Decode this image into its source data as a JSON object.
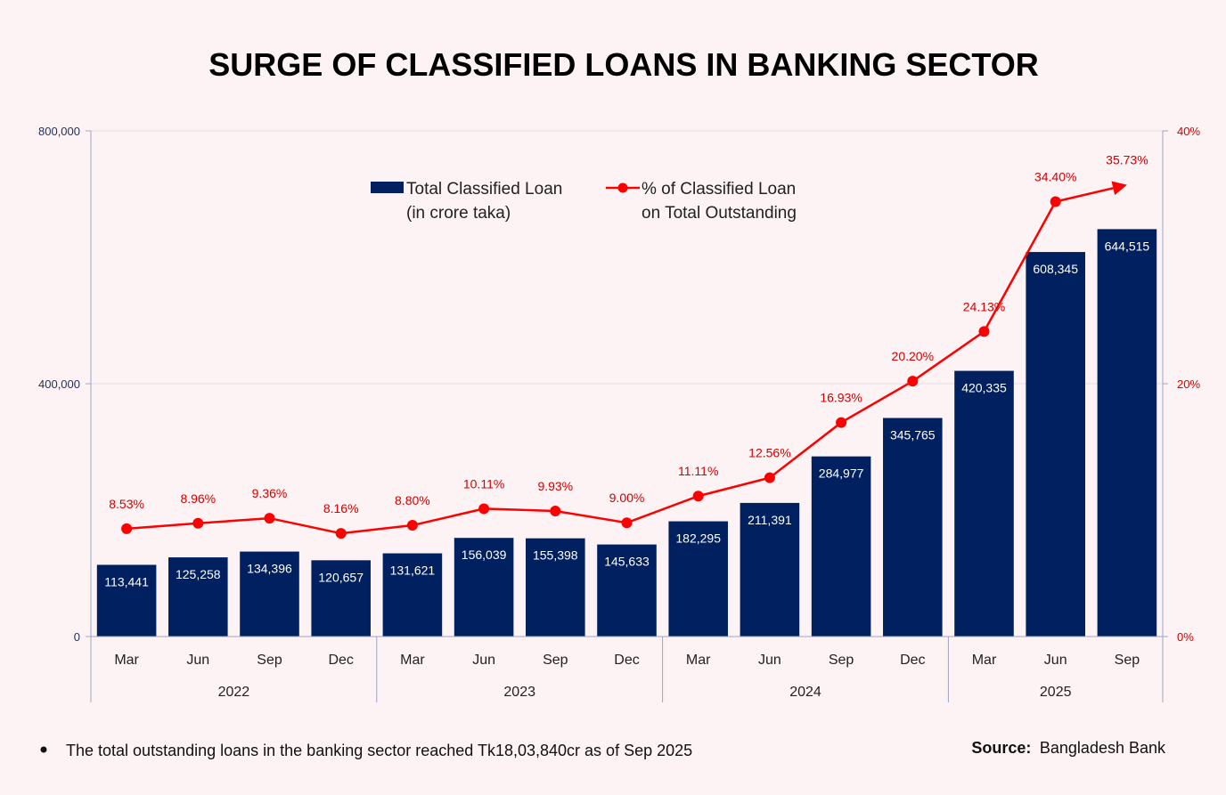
{
  "title": "SURGE OF CLASSIFIED LOANS IN BANKING SECTOR",
  "chart_data": {
    "type": "bar",
    "title": "SURGE OF CLASSIFIED LOANS IN BANKING SECTOR",
    "categories": [
      "Mar",
      "Jun",
      "Sep",
      "Dec",
      "Mar",
      "Jun",
      "Sep",
      "Dec",
      "Mar",
      "Jun",
      "Sep",
      "Dec",
      "Mar",
      "Jun",
      "Sep"
    ],
    "groups": [
      {
        "label": "2022",
        "count": 4
      },
      {
        "label": "2023",
        "count": 4
      },
      {
        "label": "2024",
        "count": 4
      },
      {
        "label": "2025",
        "count": 3
      }
    ],
    "series": [
      {
        "name": "Total Classified Loan (in crore taka)",
        "legend_lines": [
          "Total Classified Loan",
          "(in crore taka)"
        ],
        "type": "bar",
        "axis": "left",
        "color": "#002060",
        "values": [
          113441,
          125258,
          134396,
          120657,
          131621,
          156039,
          155398,
          145633,
          182295,
          211391,
          284977,
          345765,
          420335,
          608345,
          644515
        ],
        "labels": [
          "113,441",
          "125,258",
          "134,396",
          "120,657",
          "131,621",
          "156,039",
          "155,398",
          "145,633",
          "182,295",
          "211,391",
          "284,977",
          "345,765",
          "420,335",
          "608,345",
          "644,515"
        ]
      },
      {
        "name": "% of Classified Loan on Total Outstanding",
        "legend_lines": [
          "% of Classified Loan",
          "on Total Outstanding"
        ],
        "type": "line",
        "axis": "right",
        "color": "#ff0000",
        "values": [
          8.53,
          8.96,
          9.36,
          8.16,
          8.8,
          10.11,
          9.93,
          9.0,
          11.11,
          12.56,
          16.93,
          20.2,
          24.13,
          34.4,
          35.73
        ],
        "labels": [
          "8.53%",
          "8.96%",
          "9.36%",
          "8.16%",
          "8.80%",
          "10.11%",
          "9.93%",
          "9.00%",
          "11.11%",
          "12.56%",
          "16.93%",
          "20.20%",
          "24.13%",
          "34.40%",
          "35.73%"
        ]
      }
    ],
    "y_left": {
      "ylim": [
        0,
        800000
      ],
      "ticks": [
        0,
        400000,
        800000
      ],
      "tick_labels": [
        "0",
        "400,000",
        "800,000"
      ]
    },
    "y_right": {
      "ylim": [
        0,
        40
      ],
      "ticks": [
        0,
        20,
        40
      ],
      "tick_labels": [
        "0%",
        "20%",
        "40%"
      ]
    },
    "legend_position": "top-center",
    "grid": true
  },
  "footnote": "The total outstanding loans in the banking sector reached Tk18,03,840cr as of Sep 2025",
  "source": {
    "label": "Source:",
    "text": "Bangladesh Bank"
  }
}
